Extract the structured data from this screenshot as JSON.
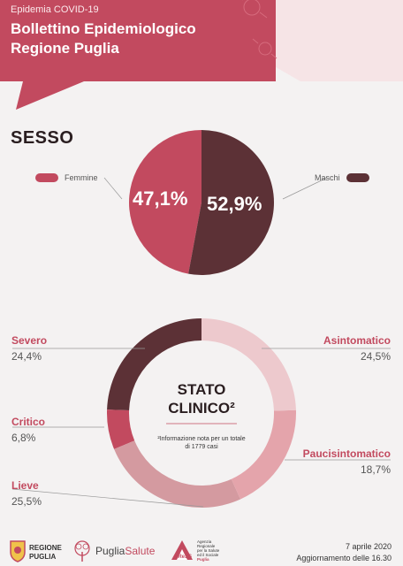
{
  "header": {
    "kicker": "Epidemia COVID-19",
    "title_line1": "Bollettino Epidemiologico",
    "title_line2": "Regione Puglia"
  },
  "colors": {
    "header": "#c24a5f",
    "femmine": "#c24a5f",
    "maschi": "#5c3136",
    "severo": "#5c3136",
    "asintomatico": "#edc9cd",
    "paucisintomatico": "#e4a4ab",
    "lieve": "#d49aa0",
    "critico": "#c24a5f",
    "accent_text": "#c24a5f"
  },
  "chart_data": [
    {
      "type": "pie",
      "title": "SESSO",
      "slices": [
        {
          "label": "Femmine",
          "value": 47.1,
          "display": "47,1%"
        },
        {
          "label": "Maschi",
          "value": 52.9,
          "display": "52,9%"
        }
      ]
    },
    {
      "type": "pie",
      "title": "STATO CLINICO²",
      "donut": true,
      "note": "²Informazione nota per un totale di 1779 casi",
      "slices": [
        {
          "label": "Asintomatico",
          "value": 24.5,
          "display": "24,5%"
        },
        {
          "label": "Paucisintomatico",
          "value": 18.7,
          "display": "18,7%"
        },
        {
          "label": "Lieve",
          "value": 25.5,
          "display": "25,5%"
        },
        {
          "label": "Critico",
          "value": 6.8,
          "display": "6,8%"
        },
        {
          "label": "Severo",
          "value": 24.4,
          "display": "24,4%"
        }
      ]
    }
  ],
  "footer": {
    "brand1_line1": "REGIONE",
    "brand1_line2": "PUGLIA",
    "brand2_a": "Puglia",
    "brand2_b": "Salute",
    "brand3_short": "AReSS",
    "brand3_line1": "Agenzia",
    "brand3_line2": "Regionale",
    "brand3_line3": "per la Salute",
    "brand3_line4": "ed il Sociale",
    "brand3_line5": "Puglia",
    "date": "7 aprile 2020",
    "update": "Aggiornamento delle 16.30"
  }
}
